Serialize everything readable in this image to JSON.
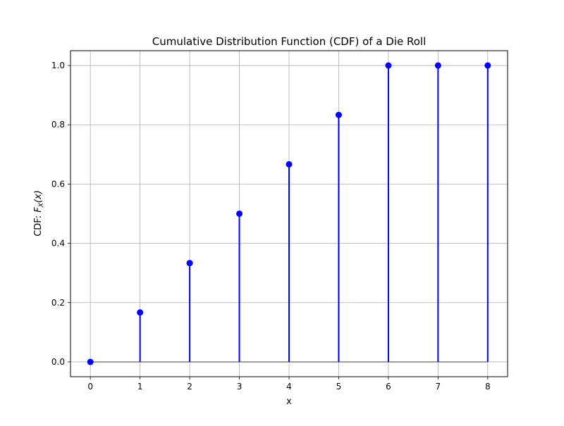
{
  "chart_data": {
    "type": "stem",
    "title": "Cumulative Distribution Function (CDF) of a Die Roll",
    "xlabel": "x",
    "ylabel_prefix": "CDF: ",
    "ylabel_math": {
      "base": "F",
      "sub": "X",
      "arg": "(x)"
    },
    "x": [
      0,
      1,
      2,
      3,
      4,
      5,
      6,
      7,
      8
    ],
    "y": [
      0.0,
      0.1667,
      0.3333,
      0.5,
      0.6667,
      0.8333,
      1.0,
      1.0,
      1.0
    ],
    "xlim": [
      -0.4,
      8.4
    ],
    "ylim": [
      -0.05,
      1.05
    ],
    "xticks": [
      "0",
      "1",
      "2",
      "3",
      "4",
      "5",
      "6",
      "7",
      "8"
    ],
    "yticks": [
      "0.0",
      "0.2",
      "0.4",
      "0.6",
      "0.8",
      "1.0"
    ],
    "grid": true,
    "colors": {
      "stem": "#0000ff",
      "marker": "#0000ff",
      "baseline": "#808080",
      "grid": "#b0b0b0",
      "axes": "#000000"
    }
  }
}
